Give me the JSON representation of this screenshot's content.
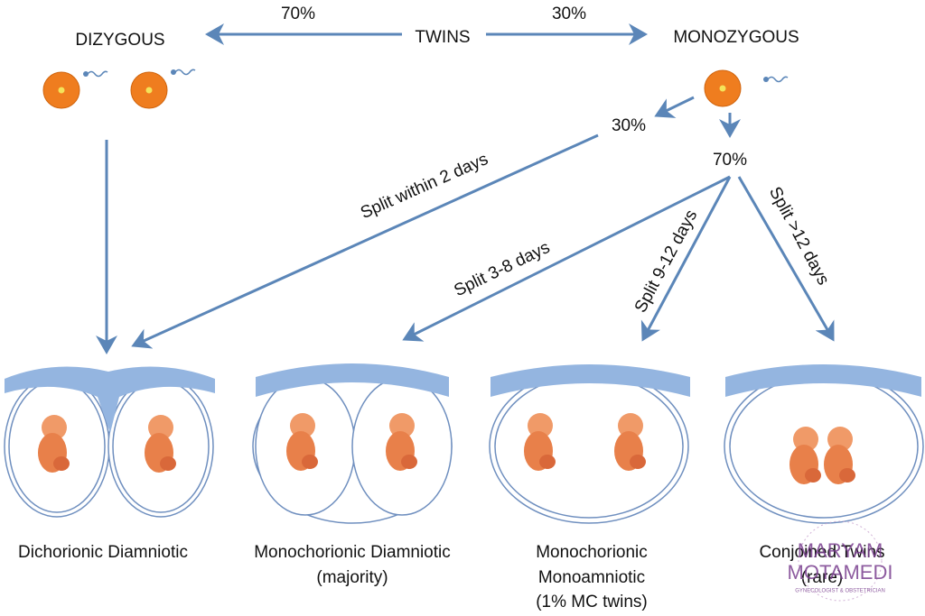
{
  "top": {
    "root": "TWINS",
    "left": {
      "label": "DIZYGOUS",
      "percent": "70%"
    },
    "right": {
      "label": "MONOZYGOUS",
      "percent": "30%"
    }
  },
  "monozygous_split": {
    "early_percent": "30%",
    "late_percent": "70%"
  },
  "splits": [
    "Split within 2 days",
    "Split 3-8 days",
    "Split 9-12 days",
    "Split >12 days"
  ],
  "outcomes": [
    {
      "lines": [
        "Dichorionic Diamniotic"
      ]
    },
    {
      "lines": [
        "Monochorionic Diamniotic",
        "(majority)"
      ]
    },
    {
      "lines": [
        "Monochorionic",
        "Monoamniotic",
        "(1% MC twins)"
      ]
    },
    {
      "lines": [
        "Conjoined Twins",
        "(rare)"
      ]
    }
  ],
  "watermark": {
    "name_line1": "MARYAM",
    "name_line2": "MOTAMEDI",
    "subtitle": "GYNECOLOGIST & OBSTETRICIAN"
  }
}
